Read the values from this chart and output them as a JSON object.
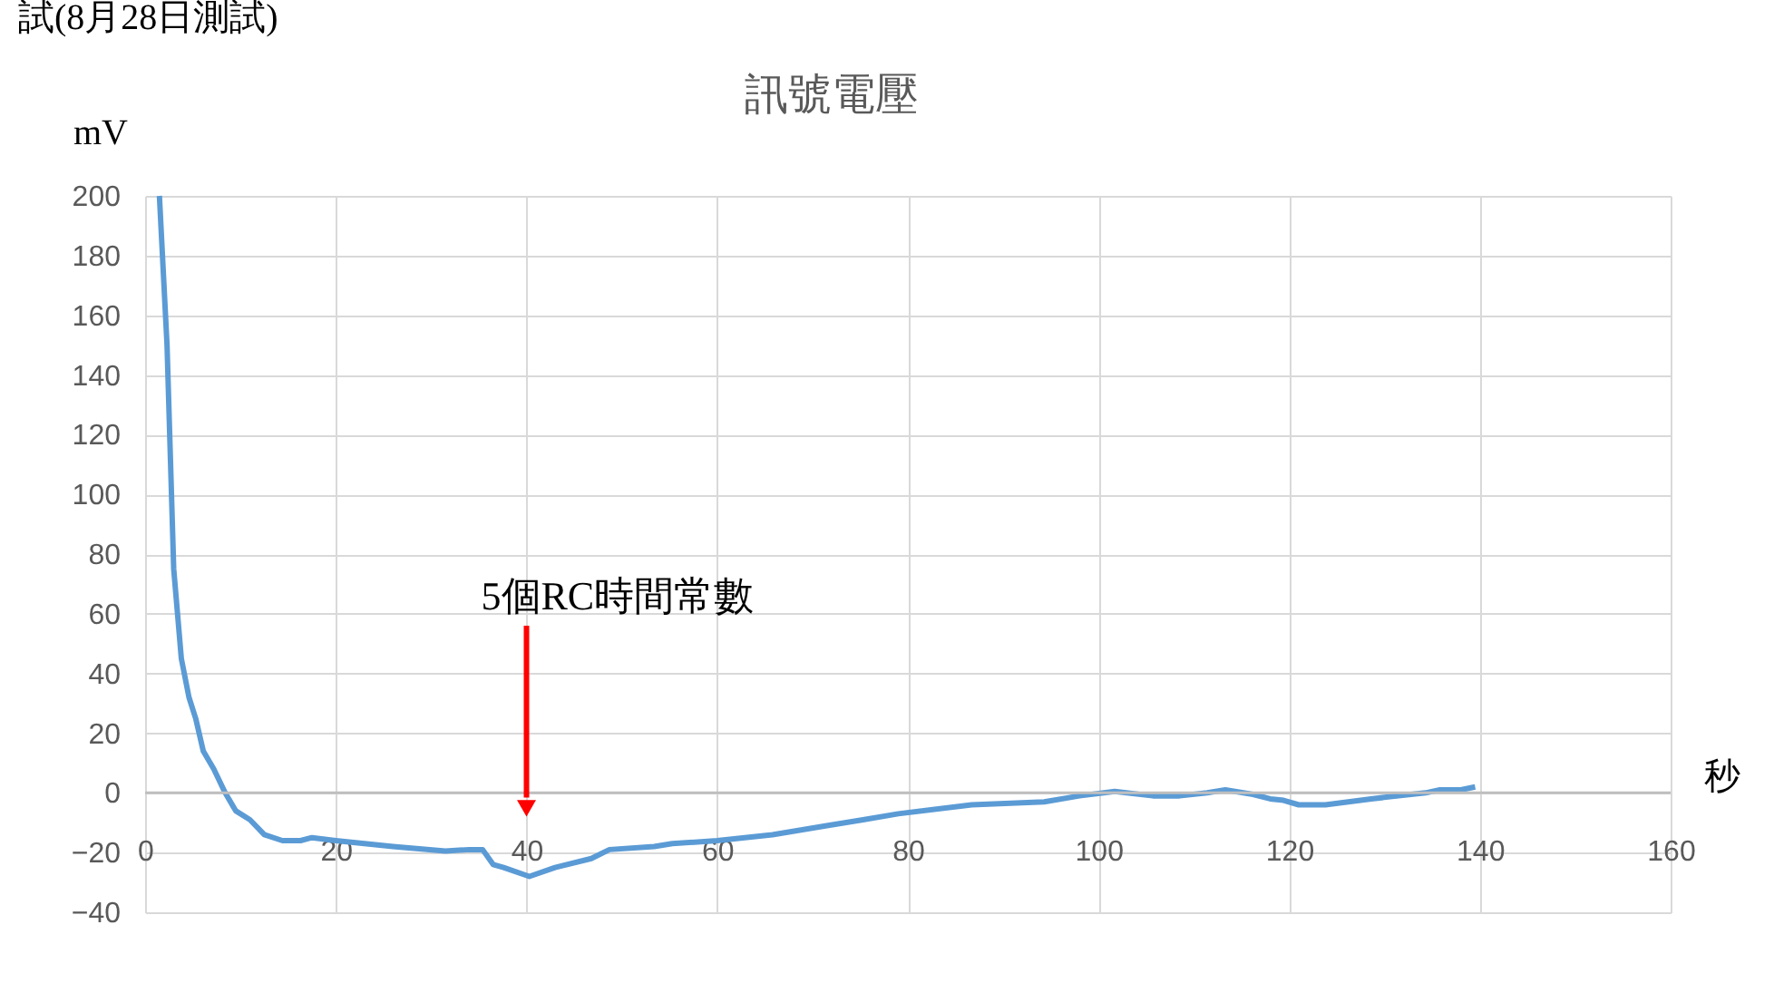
{
  "chart_data": {
    "type": "line",
    "title": "訊號電壓",
    "xlabel": "秒",
    "ylabel": "mV",
    "annotations": [
      "試(8月28日測試)",
      "5個RC時間常數"
    ],
    "x": [
      1.5,
      2.3,
      3,
      3.8,
      4.6,
      5.3,
      6.1,
      7.2,
      8.4,
      9.5,
      11,
      12.5,
      14.4,
      16.3,
      17.5,
      20,
      26,
      31.5,
      34,
      35.4,
      36.5,
      37.6,
      40.3,
      43,
      46.8,
      48.7,
      53.4,
      55.3,
      60,
      65.8,
      71.5,
      75.3,
      79,
      86.7,
      94.3,
      98,
      101.7,
      105.7,
      108.5,
      111.4,
      113.3,
      116.2,
      118,
      119.4,
      121,
      123.8,
      128.6,
      134.3,
      135.8,
      138,
      139.5
    ],
    "series": [
      {
        "color": "#5b9bd5",
        "values": [
          200,
          150,
          75,
          45,
          32,
          25,
          14,
          8,
          0,
          -6,
          -9,
          -14,
          -16,
          -16,
          -15,
          -16,
          -18,
          -19.5,
          -19,
          -19,
          -24,
          -25,
          -28,
          -25,
          -22,
          -19,
          -18,
          -17,
          -16,
          -14,
          -11,
          -9,
          -7,
          -4,
          -3,
          -1,
          0.5,
          -1,
          -1,
          0,
          1,
          -0.5,
          -2,
          -2.5,
          -4,
          -4,
          -2,
          0,
          1,
          1,
          2
        ]
      }
    ],
    "xlim": [
      0,
      160
    ],
    "xticks": [
      0,
      20,
      40,
      60,
      80,
      100,
      120,
      140,
      160
    ],
    "ylim": [
      -40,
      200
    ],
    "yticks": [
      -40,
      -20,
      0,
      20,
      40,
      60,
      80,
      100,
      120,
      140,
      160,
      180,
      200
    ],
    "grid": true,
    "marker": "none",
    "line_style": "solid"
  }
}
